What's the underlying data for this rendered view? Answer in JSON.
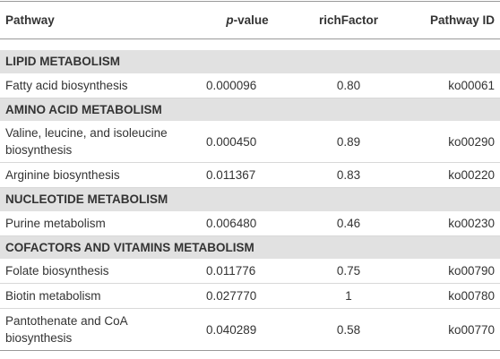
{
  "table": {
    "header": [
      "Pathway",
      {
        "italic": "p",
        "text": "-value"
      },
      "richFactor",
      "Pathway ID"
    ],
    "sections": [
      {
        "title": "LIPID METABOLISM",
        "rows": [
          [
            "Fatty acid biosynthesis",
            "0.000096",
            "0.80",
            "ko00061"
          ]
        ]
      },
      {
        "title": "AMINO ACID METABOLISM",
        "rows": [
          [
            "Valine, leucine, and isoleucine biosynthesis",
            "0.000450",
            "0.89",
            "ko00290"
          ],
          [
            "Arginine biosynthesis",
            "0.011367",
            "0.83",
            "ko00220"
          ]
        ]
      },
      {
        "title": "NUCLEOTIDE METABOLISM",
        "rows": [
          [
            "Purine metabolism",
            "0.006480",
            "0.46",
            "ko00230"
          ]
        ]
      },
      {
        "title": "COFACTORS AND VITAMINS METABOLISM",
        "rows": [
          [
            "Folate biosynthesis",
            "0.011776",
            "0.75",
            "ko00790"
          ],
          [
            "Biotin metabolism",
            "0.027770",
            "1",
            "ko00780"
          ],
          [
            "Pantothenate and CoA biosynthesis",
            "0.040289",
            "0.58",
            "ko00770"
          ]
        ]
      }
    ]
  }
}
